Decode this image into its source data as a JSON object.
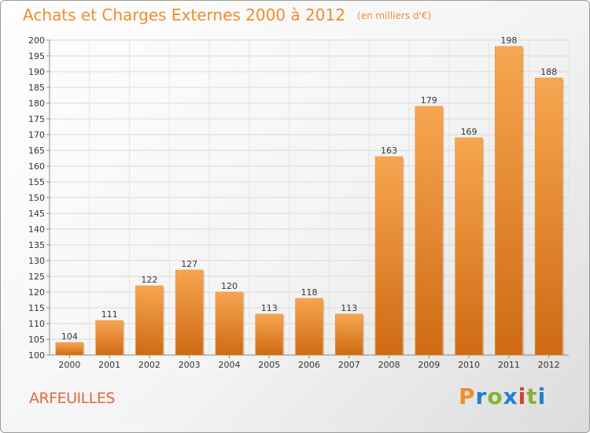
{
  "header": {
    "title": "Achats et Charges Externes 2000 à 2012",
    "unit": "(en milliers d'€)"
  },
  "commune": "ARFEUILLES",
  "logo": {
    "text": "Proxiti",
    "letter_colors": [
      "#f08c2c",
      "#1e7fd0",
      "#8ab23a",
      "#1e7fd0",
      "#d9412b",
      "#8ab23a",
      "#1e7fd0"
    ]
  },
  "colors": {
    "title": "#f08c2c",
    "bar_top": "#f7a651",
    "bar_bottom": "#cf6a14",
    "commune": "#e2683a"
  },
  "chart_data": {
    "type": "bar",
    "title": "Achats et Charges Externes 2000 à 2012",
    "subtitle": "(en milliers d'€)",
    "categories": [
      "2000",
      "2001",
      "2002",
      "2003",
      "2004",
      "2005",
      "2006",
      "2007",
      "2008",
      "2009",
      "2010",
      "2011",
      "2012"
    ],
    "values": [
      104,
      111,
      122,
      127,
      120,
      113,
      118,
      113,
      163,
      179,
      169,
      198,
      188
    ],
    "ylim": [
      100,
      200
    ],
    "ytick_step": 5,
    "grid": true,
    "show_value_labels": true
  }
}
